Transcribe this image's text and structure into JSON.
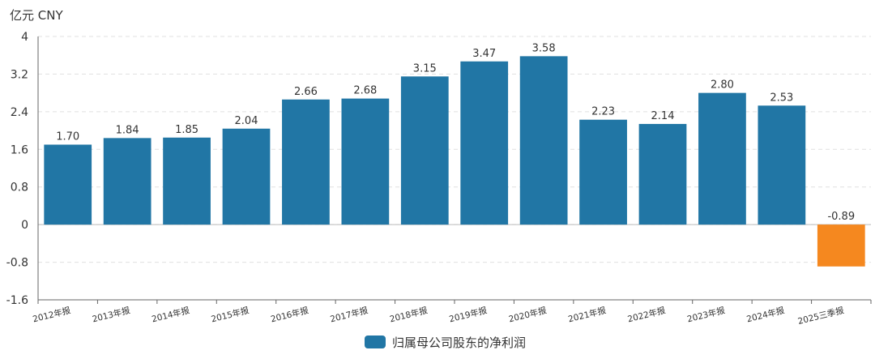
{
  "chart_data": {
    "type": "bar",
    "unit_label": "亿元  CNY",
    "categories": [
      "2012年报",
      "2013年报",
      "2014年报",
      "2015年报",
      "2016年报",
      "2017年报",
      "2018年报",
      "2019年报",
      "2020年报",
      "2021年报",
      "2022年报",
      "2023年报",
      "2024年报",
      "2025三季报"
    ],
    "series": [
      {
        "name": "归属母公司股东的净利润",
        "values": [
          1.7,
          1.84,
          1.85,
          2.04,
          2.66,
          2.68,
          3.15,
          3.47,
          3.58,
          2.23,
          2.14,
          2.8,
          2.53,
          -0.89
        ],
        "labels": [
          "1.70",
          "1.84",
          "1.85",
          "2.04",
          "2.66",
          "2.68",
          "3.15",
          "3.47",
          "3.58",
          "2.23",
          "2.14",
          "2.80",
          "2.53",
          "-0.89"
        ]
      }
    ],
    "ylim": [
      -1.6,
      4
    ],
    "yticks": [
      "4",
      "3.2",
      "2.4",
      "1.6",
      "0.8",
      "0",
      "-0.8",
      "-1.6"
    ],
    "ytick_values": [
      4,
      3.2,
      2.4,
      1.6,
      0.8,
      0,
      -0.8,
      -1.6
    ],
    "colors": {
      "positive": "#2176a5",
      "negative": "#f5881f",
      "grid": "#e0e0e0",
      "axis": "#666666",
      "text": "#333333"
    },
    "grid": true,
    "legend_position": "bottom-center"
  }
}
